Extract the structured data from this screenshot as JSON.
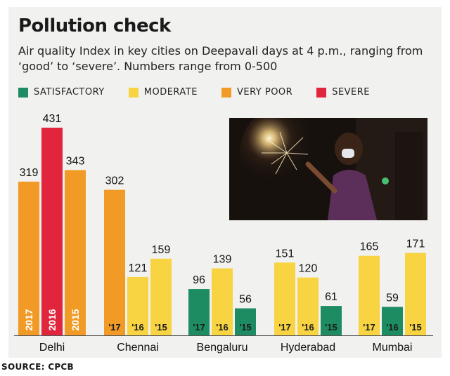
{
  "header": {
    "title": "Pollution check",
    "subtitle": "Air quality Index in key cities on Deepavali days at 4 p.m., ranging from ‘good’ to ‘severe’. Numbers range from 0-500"
  },
  "legend": [
    {
      "label": "SATISFACTORY",
      "color": "#1e8c63"
    },
    {
      "label": "MODERATE",
      "color": "#f8d442"
    },
    {
      "label": "VERY POOR",
      "color": "#f29a26"
    },
    {
      "label": "SEVERE",
      "color": "#e0253c"
    }
  ],
  "source": "SOURCE: CPCB",
  "chart_data": {
    "type": "bar",
    "title": "Pollution check",
    "ylim": [
      0,
      500
    ],
    "grid": false,
    "legend_position": "top",
    "groups": [
      {
        "city": "Delhi",
        "bars": [
          {
            "year_label": "2017",
            "value": 319,
            "category": "VERY POOR"
          },
          {
            "year_label": "2016",
            "value": 431,
            "category": "SEVERE"
          },
          {
            "year_label": "2015",
            "value": 343,
            "category": "VERY POOR"
          }
        ]
      },
      {
        "city": "Chennai",
        "bars": [
          {
            "year_label": "'17",
            "value": 302,
            "category": "VERY POOR"
          },
          {
            "year_label": "'16",
            "value": 121,
            "category": "MODERATE"
          },
          {
            "year_label": "'15",
            "value": 159,
            "category": "MODERATE"
          }
        ]
      },
      {
        "city": "Bengaluru",
        "bars": [
          {
            "year_label": "'17",
            "value": 96,
            "category": "SATISFACTORY"
          },
          {
            "year_label": "'16",
            "value": 139,
            "category": "MODERATE"
          },
          {
            "year_label": "'15",
            "value": 56,
            "category": "SATISFACTORY"
          }
        ]
      },
      {
        "city": "Hyderabad",
        "bars": [
          {
            "year_label": "'17",
            "value": 151,
            "category": "MODERATE"
          },
          {
            "year_label": "'16",
            "value": 120,
            "category": "MODERATE"
          },
          {
            "year_label": "'15",
            "value": 61,
            "category": "SATISFACTORY"
          }
        ]
      },
      {
        "city": "Mumbai",
        "bars": [
          {
            "year_label": "'17",
            "value": 165,
            "category": "MODERATE"
          },
          {
            "year_label": "'16",
            "value": 59,
            "category": "SATISFACTORY"
          },
          {
            "year_label": "'15",
            "value": 171,
            "category": "MODERATE"
          }
        ]
      }
    ]
  }
}
